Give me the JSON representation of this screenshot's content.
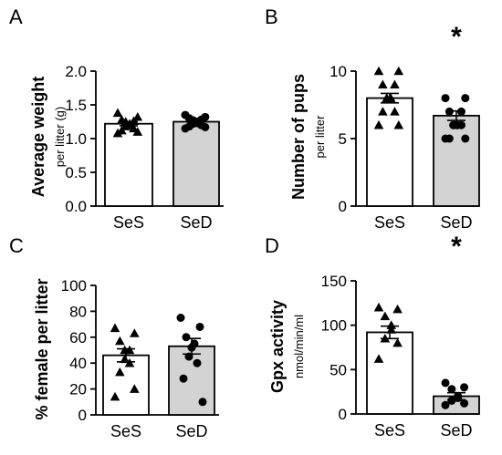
{
  "chart_data": [
    {
      "type": "bar",
      "panel_label": "A",
      "ylabel": "Average weight",
      "ylabel_sub": "per litter (g)",
      "ylim": [
        0,
        2.0
      ],
      "yticks": [
        0.0,
        0.5,
        1.0,
        1.5,
        2.0
      ],
      "ytick_labels": [
        "0.0",
        "0.5",
        "1.0",
        "1.5",
        "2.0"
      ],
      "categories": [
        "SeS",
        "SeD"
      ],
      "values": [
        1.22,
        1.25
      ],
      "errors": [
        0.03,
        0.03
      ],
      "bar_colors": [
        "#ffffff",
        "#d3d3d3"
      ],
      "marker_shapes": [
        "triangle",
        "circle"
      ],
      "points": [
        [
          1.38,
          1.32,
          1.28,
          1.26,
          1.25,
          1.22,
          1.2,
          1.18,
          1.15,
          1.12,
          1.1,
          1.08
        ],
        [
          1.35,
          1.32,
          1.3,
          1.28,
          1.27,
          1.25,
          1.23,
          1.22,
          1.2,
          1.18,
          1.17,
          1.15
        ]
      ],
      "significance": ""
    },
    {
      "type": "bar",
      "panel_label": "B",
      "ylabel": "Number of pups",
      "ylabel_sub": "per litter",
      "ylim": [
        0,
        10
      ],
      "yticks": [
        0,
        5,
        10
      ],
      "ytick_labels": [
        "0",
        "5",
        "10"
      ],
      "categories": [
        "SeS",
        "SeD"
      ],
      "values": [
        8.0,
        6.7
      ],
      "errors": [
        0.35,
        0.35
      ],
      "bar_colors": [
        "#ffffff",
        "#d3d3d3"
      ],
      "marker_shapes": [
        "triangle",
        "circle"
      ],
      "points": [
        [
          10,
          10,
          9,
          9,
          8,
          8,
          8,
          8,
          7,
          7,
          6,
          6
        ],
        [
          8,
          8,
          7,
          7,
          6,
          6,
          6,
          6,
          6,
          5,
          5,
          5
        ]
      ],
      "significance": "*"
    },
    {
      "type": "bar",
      "panel_label": "C",
      "ylabel": "% female per litter",
      "ylabel_sub": "",
      "ylim": [
        0,
        100
      ],
      "yticks": [
        0,
        20,
        40,
        60,
        80,
        100
      ],
      "ytick_labels": [
        "0",
        "20",
        "40",
        "60",
        "80",
        "100"
      ],
      "categories": [
        "SeS",
        "SeD"
      ],
      "values": [
        46,
        53
      ],
      "errors": [
        5,
        6
      ],
      "bar_colors": [
        "#ffffff",
        "#d3d3d3"
      ],
      "marker_shapes": [
        "triangle",
        "circle"
      ],
      "points": [
        [
          67,
          63,
          57,
          50,
          50,
          43,
          40,
          33,
          20,
          14
        ],
        [
          75,
          68,
          60,
          55,
          52,
          45,
          40,
          28,
          10
        ]
      ],
      "significance": ""
    },
    {
      "type": "bar",
      "panel_label": "D",
      "ylabel": "Gpx activity",
      "ylabel_sub": "nmol/min/ml",
      "ylim": [
        0,
        150
      ],
      "yticks": [
        0,
        50,
        100,
        150
      ],
      "ytick_labels": [
        "0",
        "50",
        "100",
        "150"
      ],
      "categories": [
        "SeS",
        "SeD"
      ],
      "values": [
        92,
        20
      ],
      "errors": [
        7,
        4
      ],
      "bar_colors": [
        "#ffffff",
        "#d3d3d3"
      ],
      "marker_shapes": [
        "triangle",
        "circle"
      ],
      "points": [
        [
          120,
          118,
          110,
          100,
          95,
          85,
          80,
          62
        ],
        [
          35,
          30,
          28,
          20,
          18,
          15,
          12,
          10
        ]
      ],
      "significance": "*"
    }
  ]
}
